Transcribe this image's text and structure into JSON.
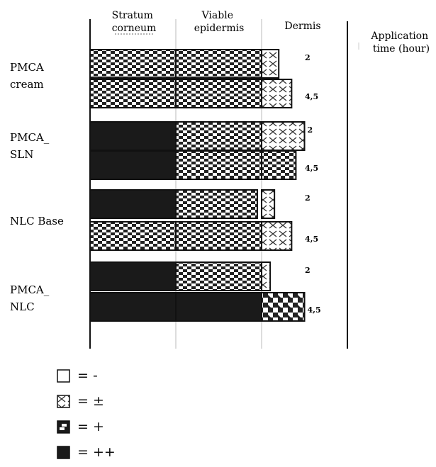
{
  "chart_data": {
    "type": "bar",
    "title": "",
    "column_headers": [
      {
        "lines": [
          "Stratum",
          "corneum"
        ]
      },
      {
        "lines": [
          "Viable",
          "epidermis"
        ]
      },
      {
        "lines": [
          "Dermis"
        ]
      }
    ],
    "time_header": [
      "Application",
      "time (hour)"
    ],
    "legend": [
      {
        "label": "= -",
        "pattern": "white"
      },
      {
        "label": "= ±",
        "pattern": "cross"
      },
      {
        "label": "= +",
        "pattern": "check"
      },
      {
        "label": "= ++",
        "pattern": "solid"
      }
    ],
    "groups": [
      {
        "name": [
          "PMCA",
          "cream"
        ],
        "bars": [
          {
            "time": "2",
            "segments": [
              {
                "pattern": "check",
                "extent": 1
              },
              {
                "pattern": "check",
                "extent": 1
              },
              {
                "pattern": "cross",
                "extent": 0.2
              }
            ]
          },
          {
            "time": "4,5",
            "segments": [
              {
                "pattern": "check",
                "extent": 1
              },
              {
                "pattern": "check",
                "extent": 1
              },
              {
                "pattern": "cross",
                "extent": 0.35
              }
            ]
          }
        ]
      },
      {
        "name": [
          "PMCA_",
          "SLN"
        ],
        "bars": [
          {
            "time": "2",
            "segments": [
              {
                "pattern": "solid",
                "extent": 1
              },
              {
                "pattern": "check",
                "extent": 1
              },
              {
                "pattern": "cross",
                "extent": 0.5
              }
            ]
          },
          {
            "time": "4,5",
            "segments": [
              {
                "pattern": "solid",
                "extent": 1
              },
              {
                "pattern": "check",
                "extent": 1
              },
              {
                "pattern": "check",
                "extent": 0.4
              }
            ]
          }
        ]
      },
      {
        "name": [
          "NLC Base"
        ],
        "bars": [
          {
            "time": "2",
            "segments": [
              {
                "pattern": "solid",
                "extent": 1
              },
              {
                "pattern": "check",
                "extent": 0.95
              },
              {
                "pattern": "cross",
                "extent": 0.15
              }
            ]
          },
          {
            "time": "4,5",
            "segments": [
              {
                "pattern": "check",
                "extent": 1
              },
              {
                "pattern": "check",
                "extent": 1
              },
              {
                "pattern": "cross",
                "extent": 0.35
              }
            ]
          }
        ]
      },
      {
        "name": [
          "PMCA_",
          "NLC"
        ],
        "bars": [
          {
            "time": "2",
            "segments": [
              {
                "pattern": "solid",
                "extent": 1
              },
              {
                "pattern": "check",
                "extent": 1
              },
              {
                "pattern": "cross",
                "extent": 0.1
              }
            ]
          },
          {
            "time": "4,5",
            "segments": [
              {
                "pattern": "solid",
                "extent": 1
              },
              {
                "pattern": "solid",
                "extent": 1
              },
              {
                "pattern": "diagonal-check",
                "extent": 0.5
              }
            ]
          }
        ]
      }
    ]
  }
}
